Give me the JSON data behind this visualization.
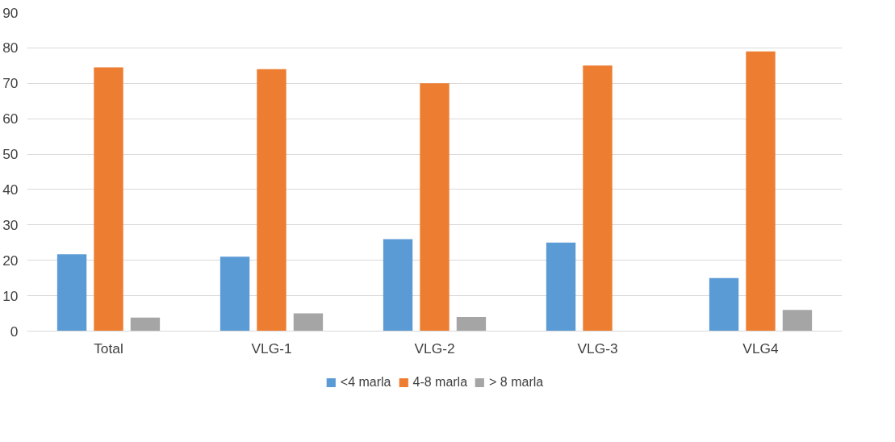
{
  "chart_data": {
    "type": "bar",
    "categories": [
      "Total",
      "VLG-1",
      "VLG-2",
      "VLG-3",
      "VLG4"
    ],
    "series": [
      {
        "name": "<4 marla",
        "color": "#5b9bd5",
        "values": [
          21.7,
          21,
          26,
          25,
          15
        ]
      },
      {
        "name": "4-8 marla",
        "color": "#ed7d31",
        "values": [
          74.5,
          74,
          70,
          75,
          79
        ]
      },
      {
        "name": "> 8 marla",
        "color": "#a5a5a5",
        "values": [
          3.8,
          5,
          4,
          0,
          6
        ]
      }
    ],
    "ylim": [
      0,
      90
    ],
    "yticks": [
      0,
      10,
      20,
      30,
      40,
      50,
      60,
      70,
      80,
      90
    ],
    "grid": "y",
    "legend": "bottom"
  }
}
